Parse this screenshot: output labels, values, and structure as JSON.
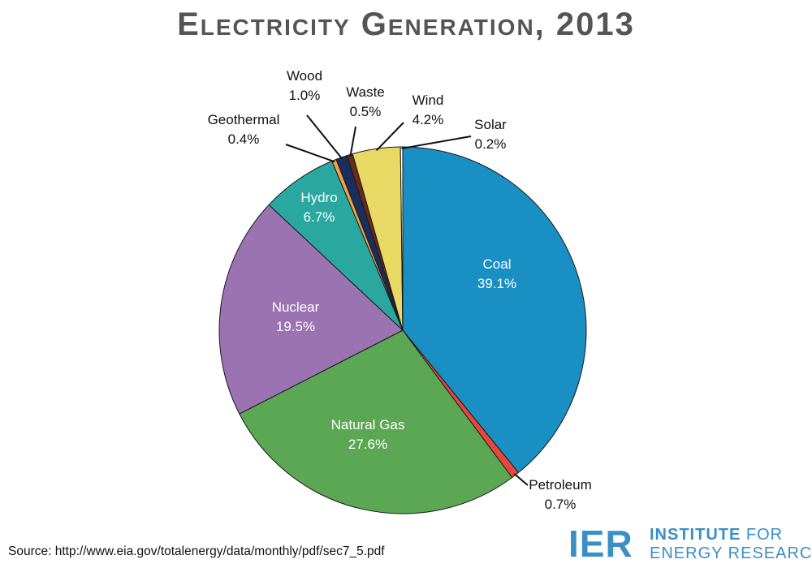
{
  "title": "Electricity Generation, 2013",
  "source": "Source: http://www.eia.gov/totalenergy/data/monthly/pdf/sec7_5.pdf",
  "logo": {
    "mark": "IER",
    "line1_a": "INSTITUTE",
    "line1_b": "FOR",
    "line2": "ENERGY RESEARCH",
    "color": "#3a8fc4"
  },
  "chart_data": {
    "type": "pie",
    "title": "Electricity Generation, 2013",
    "slices": [
      {
        "name": "Coal",
        "value": 39.1,
        "label": "39.1%",
        "color": "#1a8fc3"
      },
      {
        "name": "Petroleum",
        "value": 0.7,
        "label": "0.7%",
        "color": "#e8463c"
      },
      {
        "name": "Natural Gas",
        "value": 27.6,
        "label": "27.6%",
        "color": "#5ca753"
      },
      {
        "name": "Nuclear",
        "value": 19.5,
        "label": "19.5%",
        "color": "#9b73b3"
      },
      {
        "name": "Hydro",
        "value": 6.7,
        "label": "6.7%",
        "color": "#2aa79f"
      },
      {
        "name": "Geothermal",
        "value": 0.4,
        "label": "0.4%",
        "color": "#f0a14a"
      },
      {
        "name": "Wood",
        "value": 1.0,
        "label": "1.0%",
        "color": "#1b2f5c"
      },
      {
        "name": "Waste",
        "value": 0.5,
        "label": "0.5%",
        "color": "#6b2a1a"
      },
      {
        "name": "Wind",
        "value": 4.2,
        "label": "4.2%",
        "color": "#e8d864"
      },
      {
        "name": "Solar",
        "value": 0.2,
        "label": "0.2%",
        "color": "#ffffff"
      }
    ]
  }
}
